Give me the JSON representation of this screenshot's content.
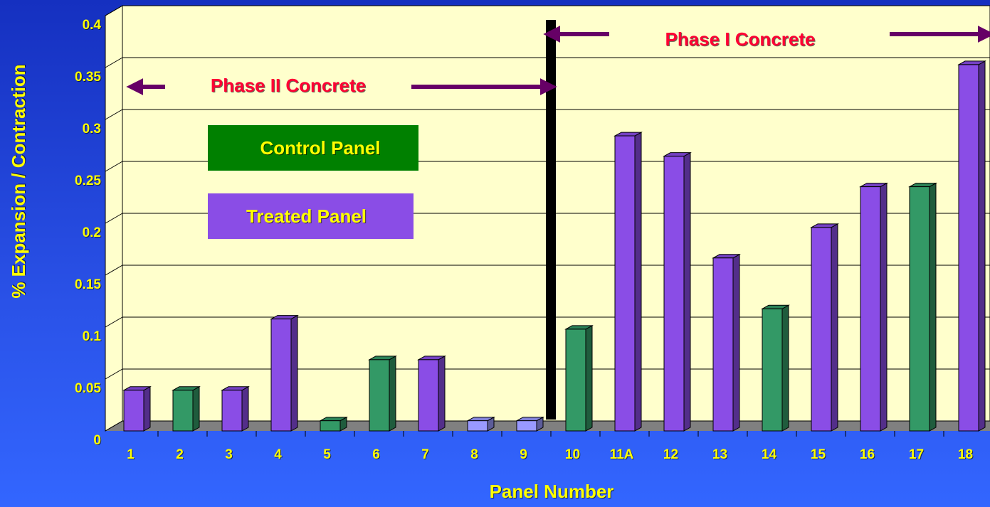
{
  "chart_data": {
    "type": "bar3d",
    "xlabel": "Panel Number",
    "ylabel": "% Expansion / Contraction",
    "categories": [
      "1",
      "2",
      "3",
      "4",
      "5",
      "6",
      "7",
      "8",
      "9",
      "10",
      "11A",
      "12",
      "13",
      "14",
      "15",
      "16",
      "17",
      "18"
    ],
    "series": [
      {
        "values": [
          0.04,
          0.04,
          0.04,
          0.11,
          0.01,
          0.07,
          0.07,
          0.01,
          0.01,
          0.1,
          0.29,
          0.27,
          0.17,
          0.12,
          0.2,
          0.24,
          0.24,
          0.36
        ],
        "colors": [
          "#8a4de6",
          "#339966",
          "#8a4de6",
          "#8a4de6",
          "#339966",
          "#339966",
          "#8a4de6",
          "#9999ff",
          "#9999ff",
          "#339966",
          "#8a4de6",
          "#8a4de6",
          "#8a4de6",
          "#339966",
          "#8a4de6",
          "#8a4de6",
          "#339966",
          "#8a4de6"
        ]
      }
    ],
    "ylim": [
      0,
      0.4
    ],
    "yticks": [
      0,
      0.05,
      0.1,
      0.15,
      0.2,
      0.25,
      0.3,
      0.35,
      0.4
    ],
    "grid": true,
    "legend": [
      {
        "label": "Control Panel",
        "color": "#008000"
      },
      {
        "label": "Treated Panel",
        "color": "#8a4de6"
      }
    ],
    "annotations": [
      "Phase II Concrete",
      "Phase I Concrete"
    ]
  }
}
